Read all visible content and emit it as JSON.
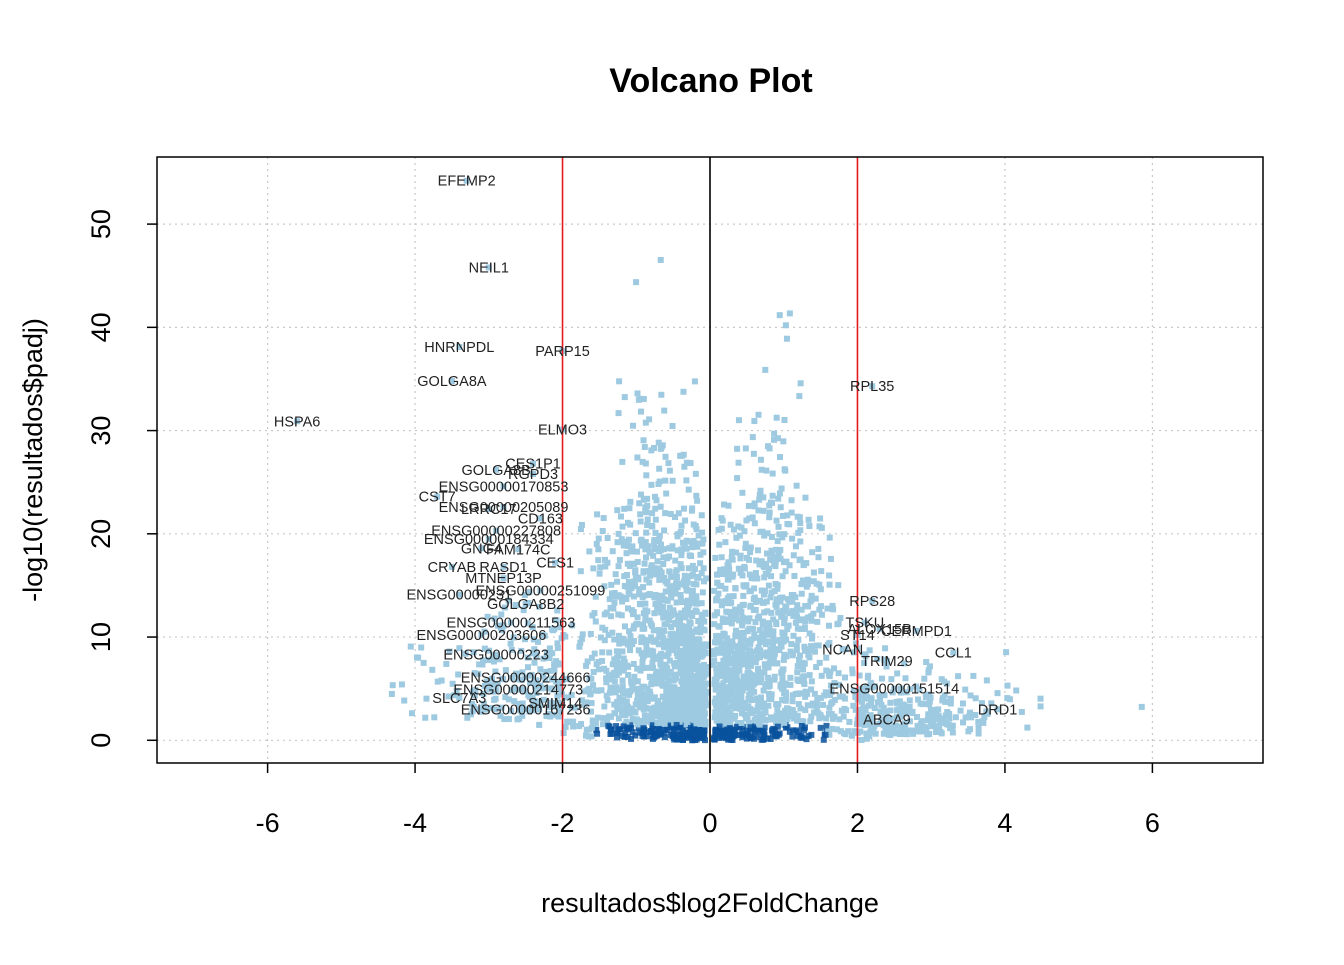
{
  "chart_data": {
    "type": "scatter",
    "title": "Volcano Plot",
    "xlabel": "resultados$log2FoldChange",
    "ylabel": "-log10(resultados$padj)",
    "xlim": [
      -7.5,
      7.5
    ],
    "ylim": [
      -2.2,
      56.5
    ],
    "x_ticks": [
      -6,
      -4,
      -2,
      0,
      2,
      4,
      6
    ],
    "x_tick_labels": [
      "-6",
      "-4",
      "-2",
      "0",
      "2",
      "4",
      "6"
    ],
    "y_ticks": [
      0,
      10,
      20,
      30,
      40,
      50
    ],
    "y_tick_labels": [
      "0",
      "10",
      "20",
      "30",
      "40",
      "50"
    ],
    "grid": true,
    "reference_lines": {
      "vertical_black": [
        0
      ],
      "vertical_red": [
        -2,
        2
      ]
    },
    "colors": {
      "points_light": "#9ECAE1",
      "points_dense": "#08519C",
      "threshold_line": "#E41A1C",
      "zero_line": "#000000",
      "grid": "#C8C8C8",
      "label_text": "#222222"
    },
    "labeled_points": [
      {
        "label": "EFEMP2",
        "x": -3.3,
        "y": 54.2
      },
      {
        "label": "NEIL1",
        "x": -3.0,
        "y": 45.8
      },
      {
        "label": "HNRNPDL",
        "x": -3.4,
        "y": 38.1
      },
      {
        "label": "PARP15",
        "x": -2.0,
        "y": 37.7
      },
      {
        "label": "GOLGA8A",
        "x": -3.5,
        "y": 34.8
      },
      {
        "label": "RPL35",
        "x": 2.2,
        "y": 34.3
      },
      {
        "label": "HSPA6",
        "x": -5.6,
        "y": 30.9
      },
      {
        "label": "ELMO3",
        "x": -2.0,
        "y": 30.1
      },
      {
        "label": "CES1P1",
        "x": -2.4,
        "y": 26.8
      },
      {
        "label": "GOLGA8B",
        "x": -2.9,
        "y": 26.2
      },
      {
        "label": "RGPD3",
        "x": -2.4,
        "y": 25.8
      },
      {
        "label": "ENSG00000170853",
        "x": -2.8,
        "y": 24.6
      },
      {
        "label": "CST7",
        "x": -3.7,
        "y": 23.6
      },
      {
        "label": "LRRC17",
        "x": -3.0,
        "y": 22.4
      },
      {
        "label": "ENSG00000205089",
        "x": -2.8,
        "y": 22.6
      },
      {
        "label": "CD163",
        "x": -2.3,
        "y": 21.5
      },
      {
        "label": "ENSG00000227808",
        "x": -2.9,
        "y": 20.3
      },
      {
        "label": "ENSG00000184334",
        "x": -3.0,
        "y": 19.5
      },
      {
        "label": "GNG4",
        "x": -3.1,
        "y": 18.6
      },
      {
        "label": "FAM174C",
        "x": -2.6,
        "y": 18.5
      },
      {
        "label": "CRYAB",
        "x": -3.5,
        "y": 16.8
      },
      {
        "label": "RASD1",
        "x": -2.8,
        "y": 16.8
      },
      {
        "label": "CES1",
        "x": -2.1,
        "y": 17.2
      },
      {
        "label": "MTNEP13P",
        "x": -2.8,
        "y": 15.7
      },
      {
        "label": "ENSG00000251099",
        "x": -2.3,
        "y": 14.5
      },
      {
        "label": "ENSG00000231",
        "x": -3.4,
        "y": 14.1
      },
      {
        "label": "GOLGA8B2",
        "x": -2.5,
        "y": 13.2
      },
      {
        "label": "RPS28",
        "x": 2.2,
        "y": 13.5
      },
      {
        "label": "ENSG00000211563",
        "x": -2.7,
        "y": 11.4
      },
      {
        "label": "TSKU",
        "x": 2.1,
        "y": 11.4
      },
      {
        "label": "ALOX15B",
        "x": 2.3,
        "y": 10.8
      },
      {
        "label": "CERMPD1",
        "x": 2.8,
        "y": 10.6
      },
      {
        "label": "ST14",
        "x": 2.0,
        "y": 10.2
      },
      {
        "label": "ENSG00000203606",
        "x": -3.1,
        "y": 10.2
      },
      {
        "label": "NCAN",
        "x": 1.8,
        "y": 8.8
      },
      {
        "label": "CCL1",
        "x": 3.3,
        "y": 8.5
      },
      {
        "label": "TRIM29",
        "x": 2.4,
        "y": 7.7
      },
      {
        "label": "ENSG00000223",
        "x": -2.9,
        "y": 8.3
      },
      {
        "label": "ENSG00000244666",
        "x": -2.5,
        "y": 6.1
      },
      {
        "label": "ENSG00000214773",
        "x": -2.6,
        "y": 4.9
      },
      {
        "label": "SMIM14",
        "x": -2.1,
        "y": 3.6
      },
      {
        "label": "SLC7A3",
        "x": -3.4,
        "y": 4.1
      },
      {
        "label": "ENSG00000167236",
        "x": -2.5,
        "y": 3.0
      },
      {
        "label": "ENSG00000151514",
        "x": 2.5,
        "y": 5.0
      },
      {
        "label": "DRD1",
        "x": 3.9,
        "y": 3.0
      },
      {
        "label": "ABCA9",
        "x": 2.4,
        "y": 2.0
      }
    ]
  }
}
